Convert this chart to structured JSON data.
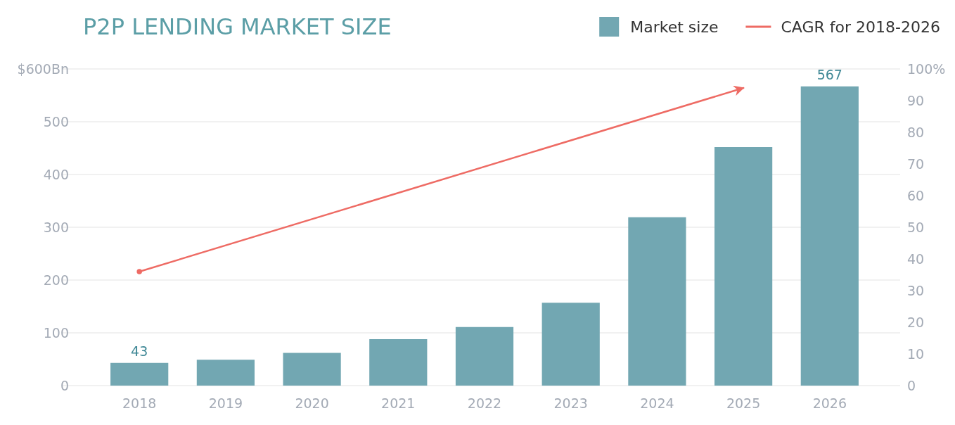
{
  "chart_data": {
    "type": "bar",
    "title": "P2P LENDING MARKET SIZE",
    "categories": [
      "2018",
      "2019",
      "2020",
      "2021",
      "2022",
      "2023",
      "2024",
      "2025",
      "2026"
    ],
    "series": [
      {
        "name": "Market size",
        "color": "#72a7b2",
        "values": [
          43,
          49,
          62,
          88,
          111,
          157,
          319,
          452,
          567
        ],
        "value_labels": [
          "43",
          null,
          null,
          null,
          null,
          null,
          null,
          null,
          "567"
        ]
      },
      {
        "name": "CAGR for 2018-2026",
        "type": "line",
        "axis": "y2",
        "color": "#ee6b64",
        "values": [
          36,
          null,
          null,
          null,
          null,
          null,
          null,
          94,
          null
        ]
      }
    ],
    "ylim": [
      0,
      600
    ],
    "yticks": [
      0,
      100,
      200,
      300,
      400,
      500,
      {
        "value": 600,
        "label": "$600Bn"
      }
    ],
    "y2lim": [
      0,
      100
    ],
    "y2ticks": [
      0,
      10,
      20,
      30,
      40,
      50,
      60,
      70,
      80,
      90,
      {
        "value": 100,
        "label": "100%"
      }
    ],
    "grid": "y",
    "legend": "top right"
  }
}
